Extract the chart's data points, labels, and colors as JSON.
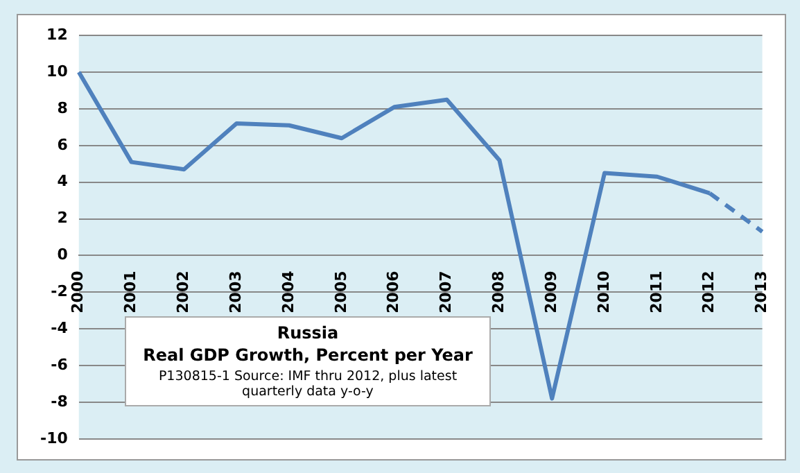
{
  "chart_data": {
    "type": "line",
    "title": "Russia",
    "subtitle": "Real GDP Growth, Percent per Year",
    "annotations": [
      "P130815-1 Source: IMF thru 2012, plus latest quarterly data y-o-y"
    ],
    "categories": [
      "2000",
      "2001",
      "2002",
      "2003",
      "2004",
      "2005",
      "2006",
      "2007",
      "2008",
      "2009",
      "2010",
      "2011",
      "2012",
      "2013"
    ],
    "series": [
      {
        "color": "#4f81bd",
        "line_style": "solid",
        "values": [
          10,
          5.1,
          4.7,
          7.2,
          7.1,
          6.4,
          8.1,
          8.5,
          5.2,
          -7.8,
          4.5,
          4.3,
          3.4,
          null
        ]
      },
      {
        "color": "#4f81bd",
        "line_style": "dashed",
        "values": [
          null,
          null,
          null,
          null,
          null,
          null,
          null,
          null,
          null,
          null,
          null,
          null,
          3.4,
          1.3
        ]
      }
    ],
    "ylim": [
      -10,
      12
    ],
    "yticks": [
      -10,
      -8,
      -6,
      -4,
      -2,
      0,
      2,
      4,
      6,
      8,
      10,
      12
    ],
    "grid": "y",
    "legend": false,
    "marker": "none"
  }
}
